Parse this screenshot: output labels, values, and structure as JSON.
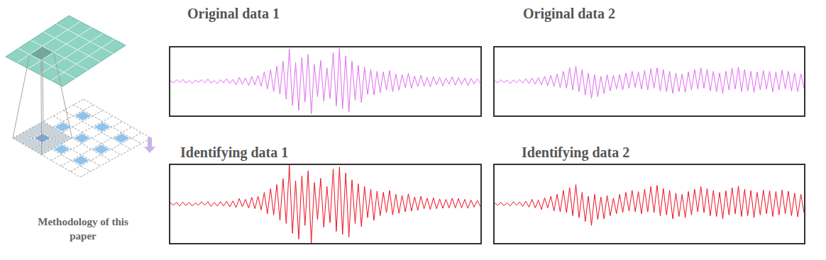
{
  "diagram": {
    "caption": "Methodology of this paper"
  },
  "chart_data": [
    {
      "type": "line",
      "title": "Original data 1",
      "color": "#e06ef0",
      "xlim": [
        0,
        99
      ],
      "ylim": [
        -1,
        1
      ],
      "grid": false,
      "tick_labels": false,
      "values": [
        0.02,
        -0.04,
        0.05,
        -0.03,
        0.06,
        -0.05,
        0.03,
        -0.06,
        0.04,
        -0.02,
        0.05,
        -0.04,
        0.07,
        -0.05,
        0.03,
        -0.06,
        0.05,
        -0.04,
        0.08,
        -0.06,
        0.06,
        -0.1,
        0.12,
        -0.08,
        0.1,
        -0.12,
        0.15,
        -0.1,
        0.18,
        -0.14,
        0.28,
        -0.22,
        0.35,
        -0.3,
        0.45,
        -0.38,
        0.6,
        -0.52,
        0.95,
        -0.7,
        0.55,
        -0.85,
        0.7,
        -0.6,
        0.8,
        -0.95,
        0.5,
        -0.45,
        0.62,
        -0.58,
        0.4,
        -0.5,
        0.85,
        -0.72,
        0.98,
        -0.8,
        0.75,
        -0.9,
        0.6,
        -0.55,
        0.48,
        -0.62,
        0.42,
        -0.38,
        0.35,
        -0.4,
        0.3,
        -0.33,
        0.28,
        -0.25,
        0.32,
        -0.3,
        0.22,
        -0.26,
        0.2,
        -0.18,
        0.24,
        -0.2,
        0.16,
        -0.15,
        0.18,
        -0.14,
        0.12,
        -0.16,
        0.14,
        -0.1,
        0.12,
        -0.13,
        0.1,
        -0.08,
        0.14,
        -0.11,
        0.12,
        -0.09,
        0.1,
        -0.12,
        0.09,
        -0.07,
        0.08,
        -0.05
      ]
    },
    {
      "type": "line",
      "title": "Original data 2",
      "color": "#e06ef0",
      "xlim": [
        0,
        99
      ],
      "ylim": [
        -1,
        1
      ],
      "grid": false,
      "tick_labels": false,
      "values": [
        0.03,
        -0.04,
        0.05,
        -0.03,
        0.04,
        -0.06,
        0.05,
        -0.04,
        0.06,
        -0.05,
        0.08,
        -0.06,
        0.1,
        -0.08,
        0.12,
        -0.1,
        0.15,
        -0.12,
        0.18,
        -0.15,
        0.22,
        -0.18,
        0.3,
        -0.2,
        0.4,
        -0.25,
        0.45,
        -0.3,
        0.35,
        -0.4,
        0.25,
        -0.5,
        0.2,
        -0.45,
        0.15,
        -0.35,
        0.2,
        -0.28,
        0.18,
        -0.22,
        0.2,
        -0.25,
        0.25,
        -0.2,
        0.3,
        -0.18,
        0.28,
        -0.22,
        0.32,
        -0.25,
        0.38,
        -0.2,
        0.4,
        -0.28,
        0.35,
        -0.3,
        0.3,
        -0.35,
        0.25,
        -0.3,
        0.22,
        -0.32,
        0.28,
        -0.25,
        0.35,
        -0.22,
        0.4,
        -0.2,
        0.36,
        -0.28,
        0.3,
        -0.3,
        0.25,
        -0.35,
        0.3,
        -0.25,
        0.38,
        -0.22,
        0.42,
        -0.3,
        0.35,
        -0.28,
        0.3,
        -0.32,
        0.28,
        -0.25,
        0.32,
        -0.22,
        0.3,
        -0.3,
        0.28,
        -0.25,
        0.33,
        -0.22,
        0.3,
        -0.28,
        0.25,
        -0.3,
        0.22,
        -0.2
      ]
    },
    {
      "type": "line",
      "title": "Identifying data 1",
      "color": "#ee1122",
      "xlim": [
        0,
        99
      ],
      "ylim": [
        -1,
        1
      ],
      "grid": false,
      "tick_labels": false,
      "values": [
        0.03,
        -0.03,
        0.04,
        -0.05,
        0.05,
        -0.04,
        0.04,
        -0.05,
        0.03,
        -0.03,
        0.06,
        -0.03,
        0.06,
        -0.06,
        0.04,
        -0.05,
        0.06,
        -0.05,
        0.07,
        -0.07,
        0.08,
        -0.09,
        0.14,
        -0.07,
        0.12,
        -0.1,
        0.17,
        -0.12,
        0.2,
        -0.15,
        0.3,
        -0.25,
        0.4,
        -0.28,
        0.5,
        -0.42,
        0.65,
        -0.5,
        1.0,
        -0.75,
        0.6,
        -0.9,
        0.72,
        -0.55,
        0.85,
        -1.0,
        0.55,
        -0.4,
        0.66,
        -0.6,
        0.45,
        -0.48,
        0.9,
        -0.7,
        0.95,
        -0.78,
        0.8,
        -0.85,
        0.62,
        -0.5,
        0.52,
        -0.58,
        0.45,
        -0.35,
        0.38,
        -0.42,
        0.33,
        -0.3,
        0.3,
        -0.22,
        0.35,
        -0.28,
        0.25,
        -0.24,
        0.22,
        -0.2,
        0.26,
        -0.18,
        0.18,
        -0.16,
        0.2,
        -0.12,
        0.15,
        -0.14,
        0.16,
        -0.12,
        0.13,
        -0.11,
        0.12,
        -0.1,
        0.15,
        -0.1,
        0.14,
        -0.1,
        0.12,
        -0.11,
        0.1,
        -0.08,
        0.09,
        -0.06
      ]
    },
    {
      "type": "line",
      "title": "Identifying data 2",
      "color": "#ee1122",
      "xlim": [
        0,
        99
      ],
      "ylim": [
        -1,
        1
      ],
      "grid": false,
      "tick_labels": false,
      "values": [
        0.02,
        -0.03,
        0.04,
        -0.04,
        0.03,
        -0.05,
        0.06,
        -0.03,
        0.05,
        -0.06,
        0.07,
        -0.08,
        0.12,
        -0.1,
        0.1,
        -0.14,
        0.16,
        -0.1,
        0.2,
        -0.18,
        0.25,
        -0.2,
        0.35,
        -0.22,
        0.42,
        -0.3,
        0.5,
        -0.35,
        0.3,
        -0.45,
        0.2,
        -0.55,
        0.25,
        -0.4,
        0.18,
        -0.38,
        0.22,
        -0.3,
        0.15,
        -0.25,
        0.25,
        -0.22,
        0.3,
        -0.18,
        0.35,
        -0.2,
        0.32,
        -0.25,
        0.38,
        -0.2,
        0.45,
        -0.22,
        0.48,
        -0.3,
        0.4,
        -0.28,
        0.35,
        -0.38,
        0.28,
        -0.32,
        0.25,
        -0.35,
        0.32,
        -0.28,
        0.38,
        -0.2,
        0.45,
        -0.22,
        0.4,
        -0.3,
        0.35,
        -0.32,
        0.3,
        -0.38,
        0.34,
        -0.28,
        0.42,
        -0.25,
        0.46,
        -0.32,
        0.38,
        -0.3,
        0.35,
        -0.35,
        0.3,
        -0.28,
        0.36,
        -0.25,
        0.34,
        -0.32,
        0.32,
        -0.28,
        0.36,
        -0.25,
        0.33,
        -0.3,
        0.28,
        -0.33,
        0.25,
        -0.22
      ]
    }
  ]
}
